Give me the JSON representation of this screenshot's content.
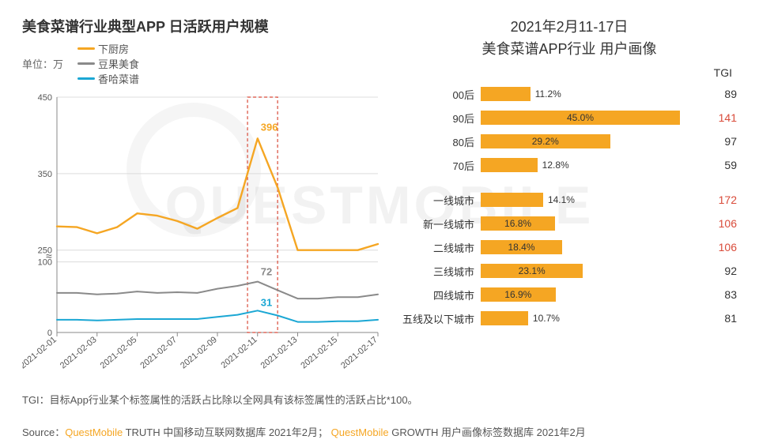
{
  "watermark_text": "QUESTMOBILE",
  "left": {
    "title": "美食菜谱行业典型APP 日活跃用户规模",
    "unit_label": "单位：万",
    "legend": [
      {
        "label": "下厨房",
        "color": "#f5a623"
      },
      {
        "label": "豆果美食",
        "color": "#8a8a8a"
      },
      {
        "label": "香哈菜谱",
        "color": "#1ba7d4"
      }
    ],
    "x_labels": [
      "2021-02-01",
      "2021-02-03",
      "2021-02-05",
      "2021-02-07",
      "2021-02-09",
      "2021-02-11",
      "2021-02-13",
      "2021-02-15",
      "2021-02-17"
    ],
    "y_ticks_upper": [
      250,
      350,
      450
    ],
    "y_ticks_lower": [
      0,
      100
    ],
    "break_symbol": true,
    "series": {
      "xia": {
        "color": "#f5a623",
        "width": 2.4,
        "values": [
          281,
          280,
          272,
          280,
          298,
          295,
          288,
          278,
          292,
          305,
          396,
          332,
          218,
          228,
          246,
          238,
          258
        ]
      },
      "dou": {
        "color": "#8a8a8a",
        "width": 2.0,
        "values": [
          56,
          56,
          54,
          55,
          58,
          56,
          57,
          56,
          62,
          66,
          72,
          60,
          48,
          48,
          50,
          50,
          54
        ]
      },
      "xiang": {
        "color": "#1ba7d4",
        "width": 2.0,
        "values": [
          18,
          18,
          17,
          18,
          19,
          19,
          19,
          19,
          22,
          25,
          31,
          24,
          15,
          15,
          16,
          16,
          18
        ]
      }
    },
    "callouts": [
      {
        "label": "396",
        "color": "#f5a623",
        "x_index": 10,
        "y": 396,
        "dy": -10
      },
      {
        "label": "72",
        "color": "#8a8a8a",
        "x_index": 10,
        "y": 72,
        "dy": -8
      },
      {
        "label": "31",
        "color": "#1ba7d4",
        "x_index": 10,
        "y": 31,
        "dy": -6
      }
    ],
    "highlight_box": {
      "x_start_index": 9.5,
      "x_end_index": 11.0,
      "color": "#d94b3a"
    },
    "grid_color": "#dcdcdc",
    "axis_color": "#888888",
    "tick_fontsize": 11
  },
  "right": {
    "title_line1": "2021年2月11-17日",
    "title_line2": "美食菜谱APP行业 用户画像",
    "tgi_header": "TGI",
    "bar_color": "#f5a623",
    "bar_max_percent": 50,
    "groups": [
      [
        {
          "label": "00后",
          "pct": 11.2,
          "tgi": 89,
          "tgi_highlight": false
        },
        {
          "label": "90后",
          "pct": 45.0,
          "tgi": 141,
          "tgi_highlight": true
        },
        {
          "label": "80后",
          "pct": 29.2,
          "tgi": 97,
          "tgi_highlight": false
        },
        {
          "label": "70后",
          "pct": 12.8,
          "tgi": 59,
          "tgi_highlight": false
        }
      ],
      [
        {
          "label": "一线城市",
          "pct": 14.1,
          "tgi": 172,
          "tgi_highlight": true
        },
        {
          "label": "新一线城市",
          "pct": 16.8,
          "tgi": 106,
          "tgi_highlight": true
        },
        {
          "label": "二线城市",
          "pct": 18.4,
          "tgi": 106,
          "tgi_highlight": true
        },
        {
          "label": "三线城市",
          "pct": 23.1,
          "tgi": 92,
          "tgi_highlight": false
        },
        {
          "label": "四线城市",
          "pct": 16.9,
          "tgi": 83,
          "tgi_highlight": false
        },
        {
          "label": "五线及以下城市",
          "pct": 10.7,
          "tgi": 81,
          "tgi_highlight": false
        }
      ]
    ],
    "tgi_highlight_color": "#d94b3a",
    "tgi_normal_color": "#333333"
  },
  "footnote": "TGI：目标App行业某个标签属性的活跃占比除以全网具有该标签属性的活跃占比*100。",
  "source": {
    "prefix": "Source：",
    "parts": [
      {
        "brand": "QuestMobile",
        "rest": " TRUTH 中国移动互联网数据库 2021年2月；  "
      },
      {
        "brand": "QuestMobile",
        "rest": " GROWTH 用户画像标签数据库 2021年2月"
      }
    ]
  }
}
